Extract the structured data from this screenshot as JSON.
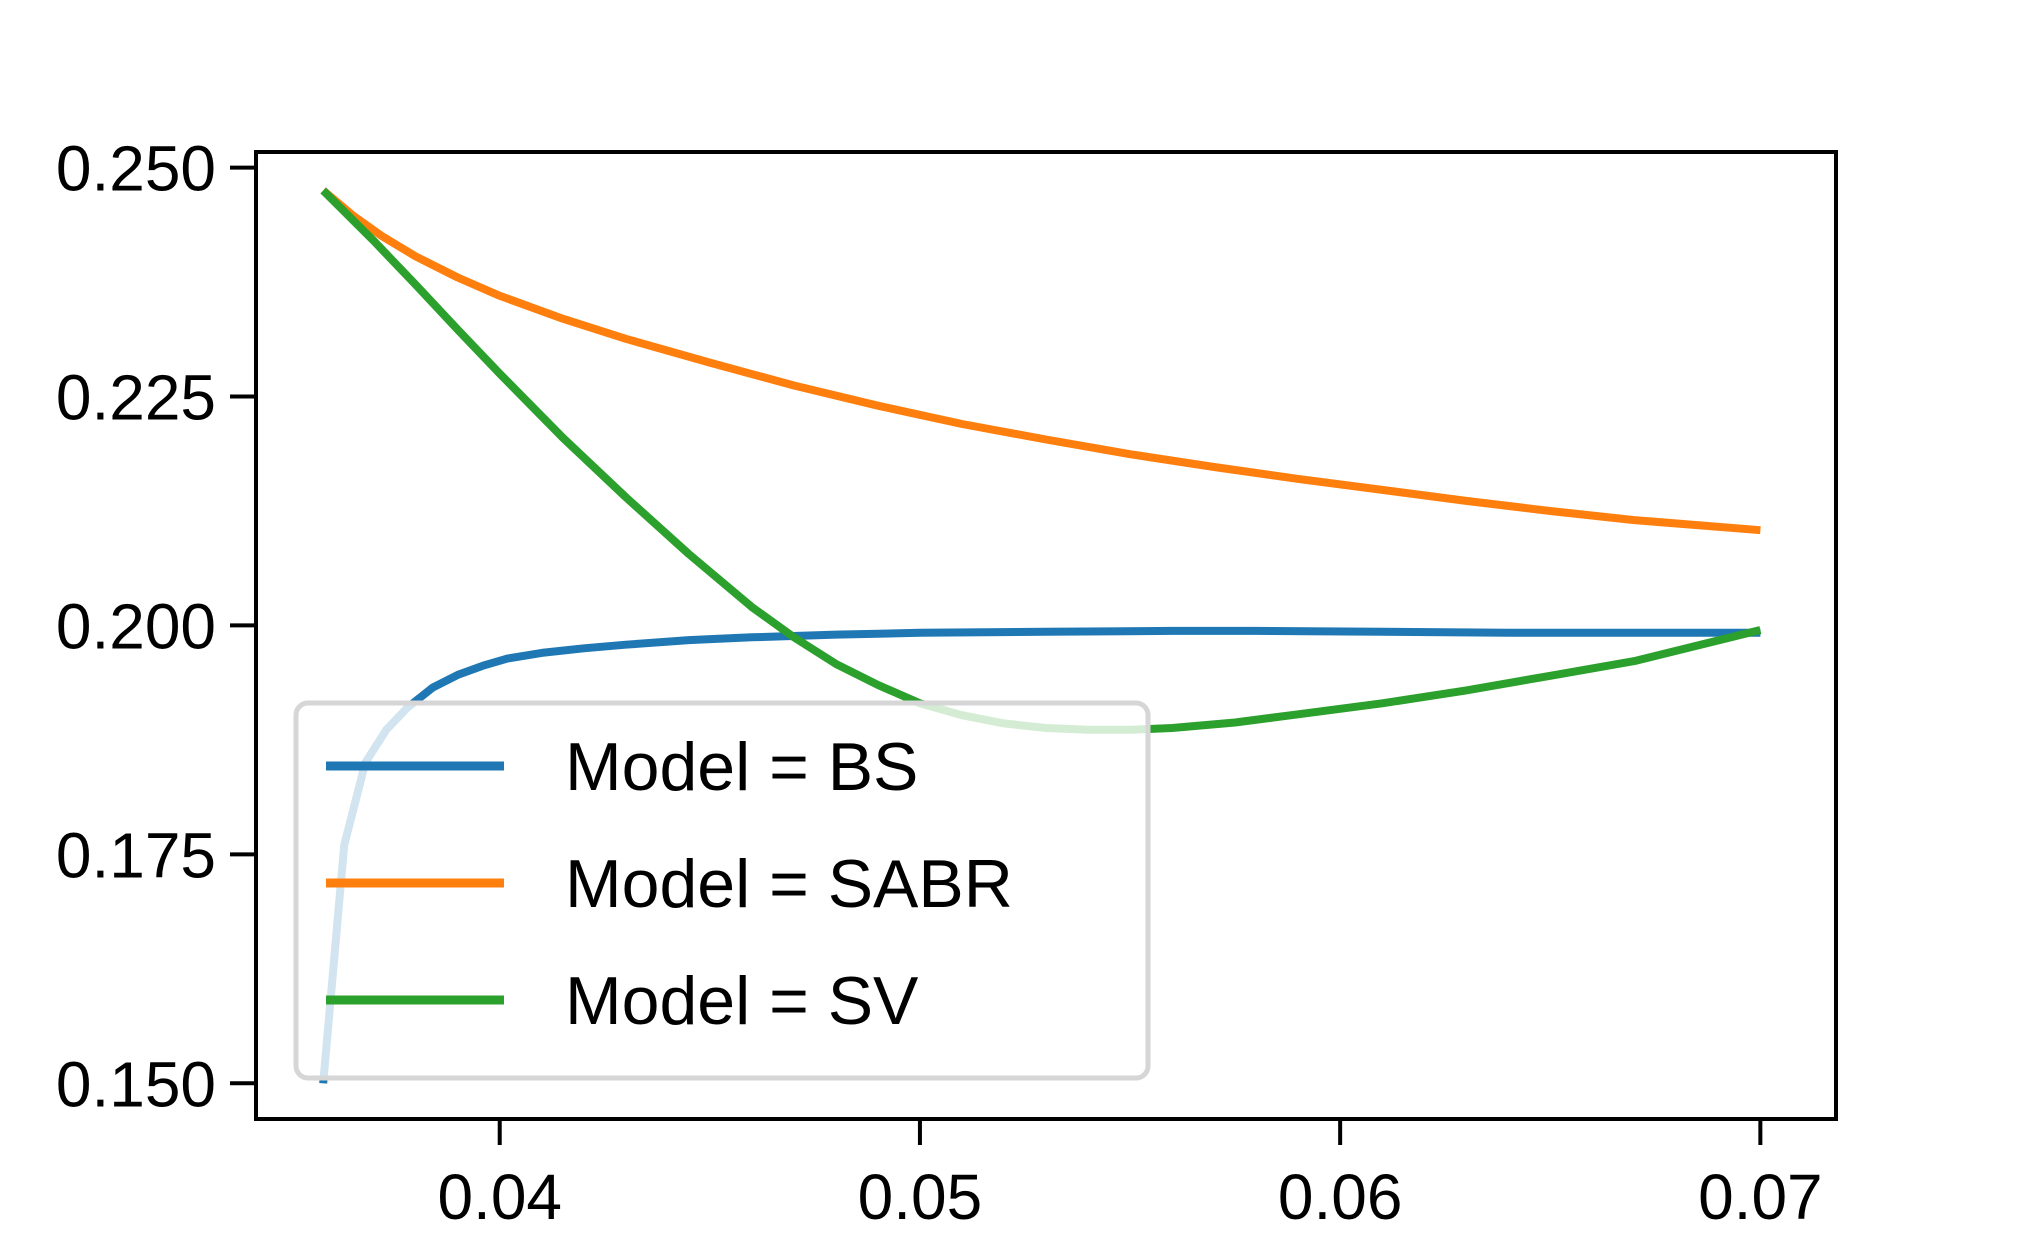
{
  "chart_data": {
    "type": "line",
    "title": "",
    "xlabel": "",
    "ylabel": "",
    "xlim": [
      0.0342,
      0.0718
    ],
    "ylim": [
      0.1461,
      0.2517
    ],
    "xticks": [
      0.04,
      0.05,
      0.06,
      0.07
    ],
    "xtick_labels": [
      "0.04",
      "0.05",
      "0.06",
      "0.07"
    ],
    "yticks": [
      0.15,
      0.175,
      0.2,
      0.225,
      0.25
    ],
    "ytick_labels": [
      "0.150",
      "0.175",
      "0.200",
      "0.225",
      "0.250"
    ],
    "grid": false,
    "legend_position": "lower-left",
    "series": [
      {
        "name": "Model = BS",
        "color": "#1f77b4",
        "x": [
          0.0358,
          0.0363,
          0.0368,
          0.0373,
          0.0378,
          0.0384,
          0.039,
          0.0396,
          0.0402,
          0.041,
          0.042,
          0.043,
          0.0445,
          0.046,
          0.048,
          0.05,
          0.053,
          0.056,
          0.058,
          0.061,
          0.064,
          0.067,
          0.07
        ],
        "y": [
          0.15,
          0.176,
          0.185,
          0.1886,
          0.191,
          0.1932,
          0.1946,
          0.1956,
          0.1964,
          0.197,
          0.1975,
          0.1979,
          0.1984,
          0.1987,
          0.199,
          0.1992,
          0.1993,
          0.1994,
          0.1994,
          0.1993,
          0.1992,
          0.1992,
          0.1992
        ]
      },
      {
        "name": "Model = SABR",
        "color": "#ff7f0e",
        "x": [
          0.0358,
          0.0365,
          0.0372,
          0.038,
          0.039,
          0.04,
          0.0415,
          0.043,
          0.045,
          0.047,
          0.049,
          0.051,
          0.053,
          0.055,
          0.057,
          0.059,
          0.061,
          0.063,
          0.065,
          0.067,
          0.07
        ],
        "y": [
          0.2475,
          0.2448,
          0.2425,
          0.2403,
          0.238,
          0.236,
          0.2335,
          0.2313,
          0.2287,
          0.2262,
          0.224,
          0.222,
          0.2203,
          0.2187,
          0.2173,
          0.216,
          0.2148,
          0.2136,
          0.2125,
          0.2115,
          0.2104
        ]
      },
      {
        "name": "Model = SV",
        "color": "#2ca02c",
        "x": [
          0.0358,
          0.037,
          0.038,
          0.039,
          0.04,
          0.0415,
          0.043,
          0.0445,
          0.046,
          0.047,
          0.048,
          0.049,
          0.05,
          0.051,
          0.052,
          0.053,
          0.054,
          0.055,
          0.056,
          0.0575,
          0.059,
          0.061,
          0.063,
          0.065,
          0.067,
          0.07
        ],
        "y": [
          0.2475,
          0.242,
          0.2372,
          0.2323,
          0.2275,
          0.2205,
          0.214,
          0.2078,
          0.202,
          0.1987,
          0.1958,
          0.1935,
          0.1915,
          0.1902,
          0.1893,
          0.1888,
          0.1886,
          0.1886,
          0.1888,
          0.1894,
          0.1903,
          0.1915,
          0.1929,
          0.1945,
          0.1961,
          0.1995
        ]
      }
    ]
  }
}
